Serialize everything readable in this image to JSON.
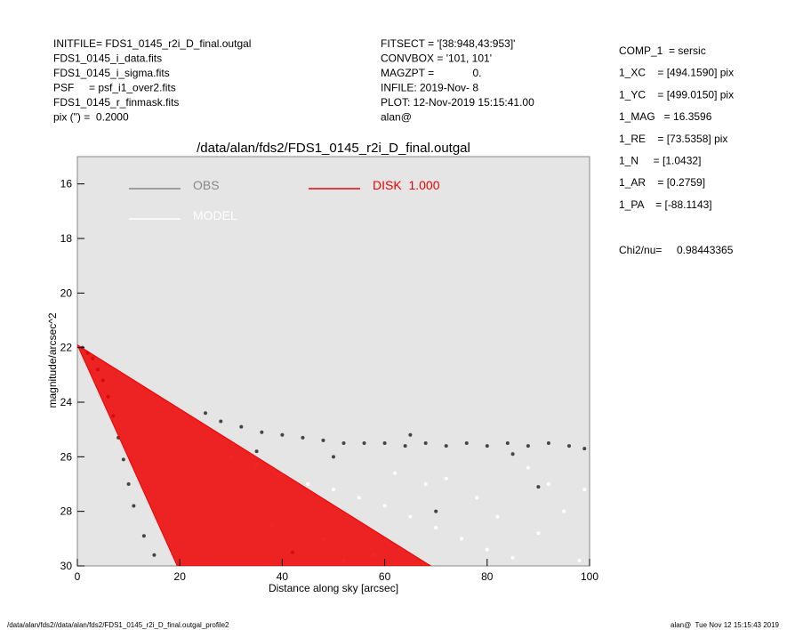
{
  "header": {
    "left": [
      "INITFILE= FDS1_0145_r2i_D_final.outgal",
      "FDS1_0145_i_data.fits",
      "FDS1_0145_i_sigma.fits",
      "PSF     = psf_i1_over2.fits",
      "FDS1_0145_r_finmask.fits",
      "pix (\") =  0.2000"
    ],
    "middle": [
      "FITSECT = '[38:948,43:953]'",
      "CONVBOX = '101, 101'",
      "MAGZPT =             0.",
      "INFILE: 2019-Nov- 8",
      "PLOT: 12-Nov-2019 15:15:41.00",
      "alan@"
    ],
    "right": [
      "COMP_1  = sersic",
      "1_XC    = [494.1590] pix",
      "1_YC    = [499.0150] pix",
      "1_MAG   = 16.3596",
      "1_RE    = [73.5358] pix",
      "1_N     = [1.0432]",
      "1_AR    = [0.2759]",
      "1_PA    = [-88.1143]"
    ],
    "chi2_label": "Chi2/nu=",
    "chi2_value": "0.98443365"
  },
  "footer": {
    "left": "/data/alan/fds2//data/alan/fds2/FDS1_0145_r2i_D_final.outgal_profile2",
    "right": "alan@  Tue Nov 12 15:15:43 2019"
  },
  "chart_data": {
    "type": "scatter",
    "title": "/data/alan/fds2/FDS1_0145_r2i_D_final.outgal",
    "x_label": "Distance along sky [arcsec]",
    "y_label": "magnitude/arcsec^2",
    "xlim": [
      0,
      100
    ],
    "xticks": [
      0,
      20,
      40,
      60,
      80,
      100
    ],
    "ylim": [
      30,
      15
    ],
    "yticks": [
      16,
      18,
      20,
      22,
      24,
      26,
      28,
      30
    ],
    "background": "#e5e5e5",
    "series": [
      {
        "name": "OBS",
        "color": "#444444",
        "style": "points",
        "x": [
          1,
          2,
          3,
          4,
          5,
          6,
          7,
          8,
          9,
          10,
          11,
          13,
          15,
          25,
          28,
          32,
          36,
          40,
          44,
          48,
          52,
          56,
          60,
          64,
          68,
          72,
          76,
          80,
          84,
          88,
          92,
          96,
          99,
          35,
          50,
          65,
          85,
          42,
          70,
          90
        ],
        "values": [
          22.0,
          22.2,
          22.4,
          22.8,
          23.2,
          23.8,
          24.5,
          25.3,
          26.1,
          27.0,
          27.8,
          28.9,
          29.6,
          24.4,
          24.7,
          24.9,
          25.1,
          25.2,
          25.3,
          25.4,
          25.5,
          25.5,
          25.5,
          25.6,
          25.5,
          25.6,
          25.5,
          25.6,
          25.5,
          25.6,
          25.5,
          25.6,
          25.7,
          25.8,
          26.0,
          25.2,
          25.9,
          29.5,
          28.0,
          27.1
        ]
      },
      {
        "name": "MODEL",
        "color": "#ffffff",
        "style": "points",
        "x": [
          30,
          35,
          40,
          45,
          50,
          55,
          60,
          65,
          70,
          75,
          80,
          85,
          90,
          95,
          99,
          38,
          48,
          58,
          68,
          78,
          88,
          98,
          62,
          72,
          82,
          92,
          52,
          20,
          24
        ],
        "values": [
          26.0,
          26.3,
          26.6,
          27.0,
          27.2,
          27.5,
          27.8,
          28.2,
          28.6,
          29.0,
          29.4,
          29.7,
          28.8,
          28.0,
          27.2,
          28.5,
          29.0,
          29.6,
          27.0,
          27.5,
          26.4,
          29.8,
          26.6,
          26.8,
          28.2,
          27.0,
          29.8,
          29.8,
          30.0
        ]
      },
      {
        "name": "DISK  1.000",
        "color": "#ee0000",
        "style": "fill",
        "x": [
          0,
          19.5,
          69
        ],
        "values": [
          21.9,
          30,
          30
        ]
      }
    ]
  }
}
